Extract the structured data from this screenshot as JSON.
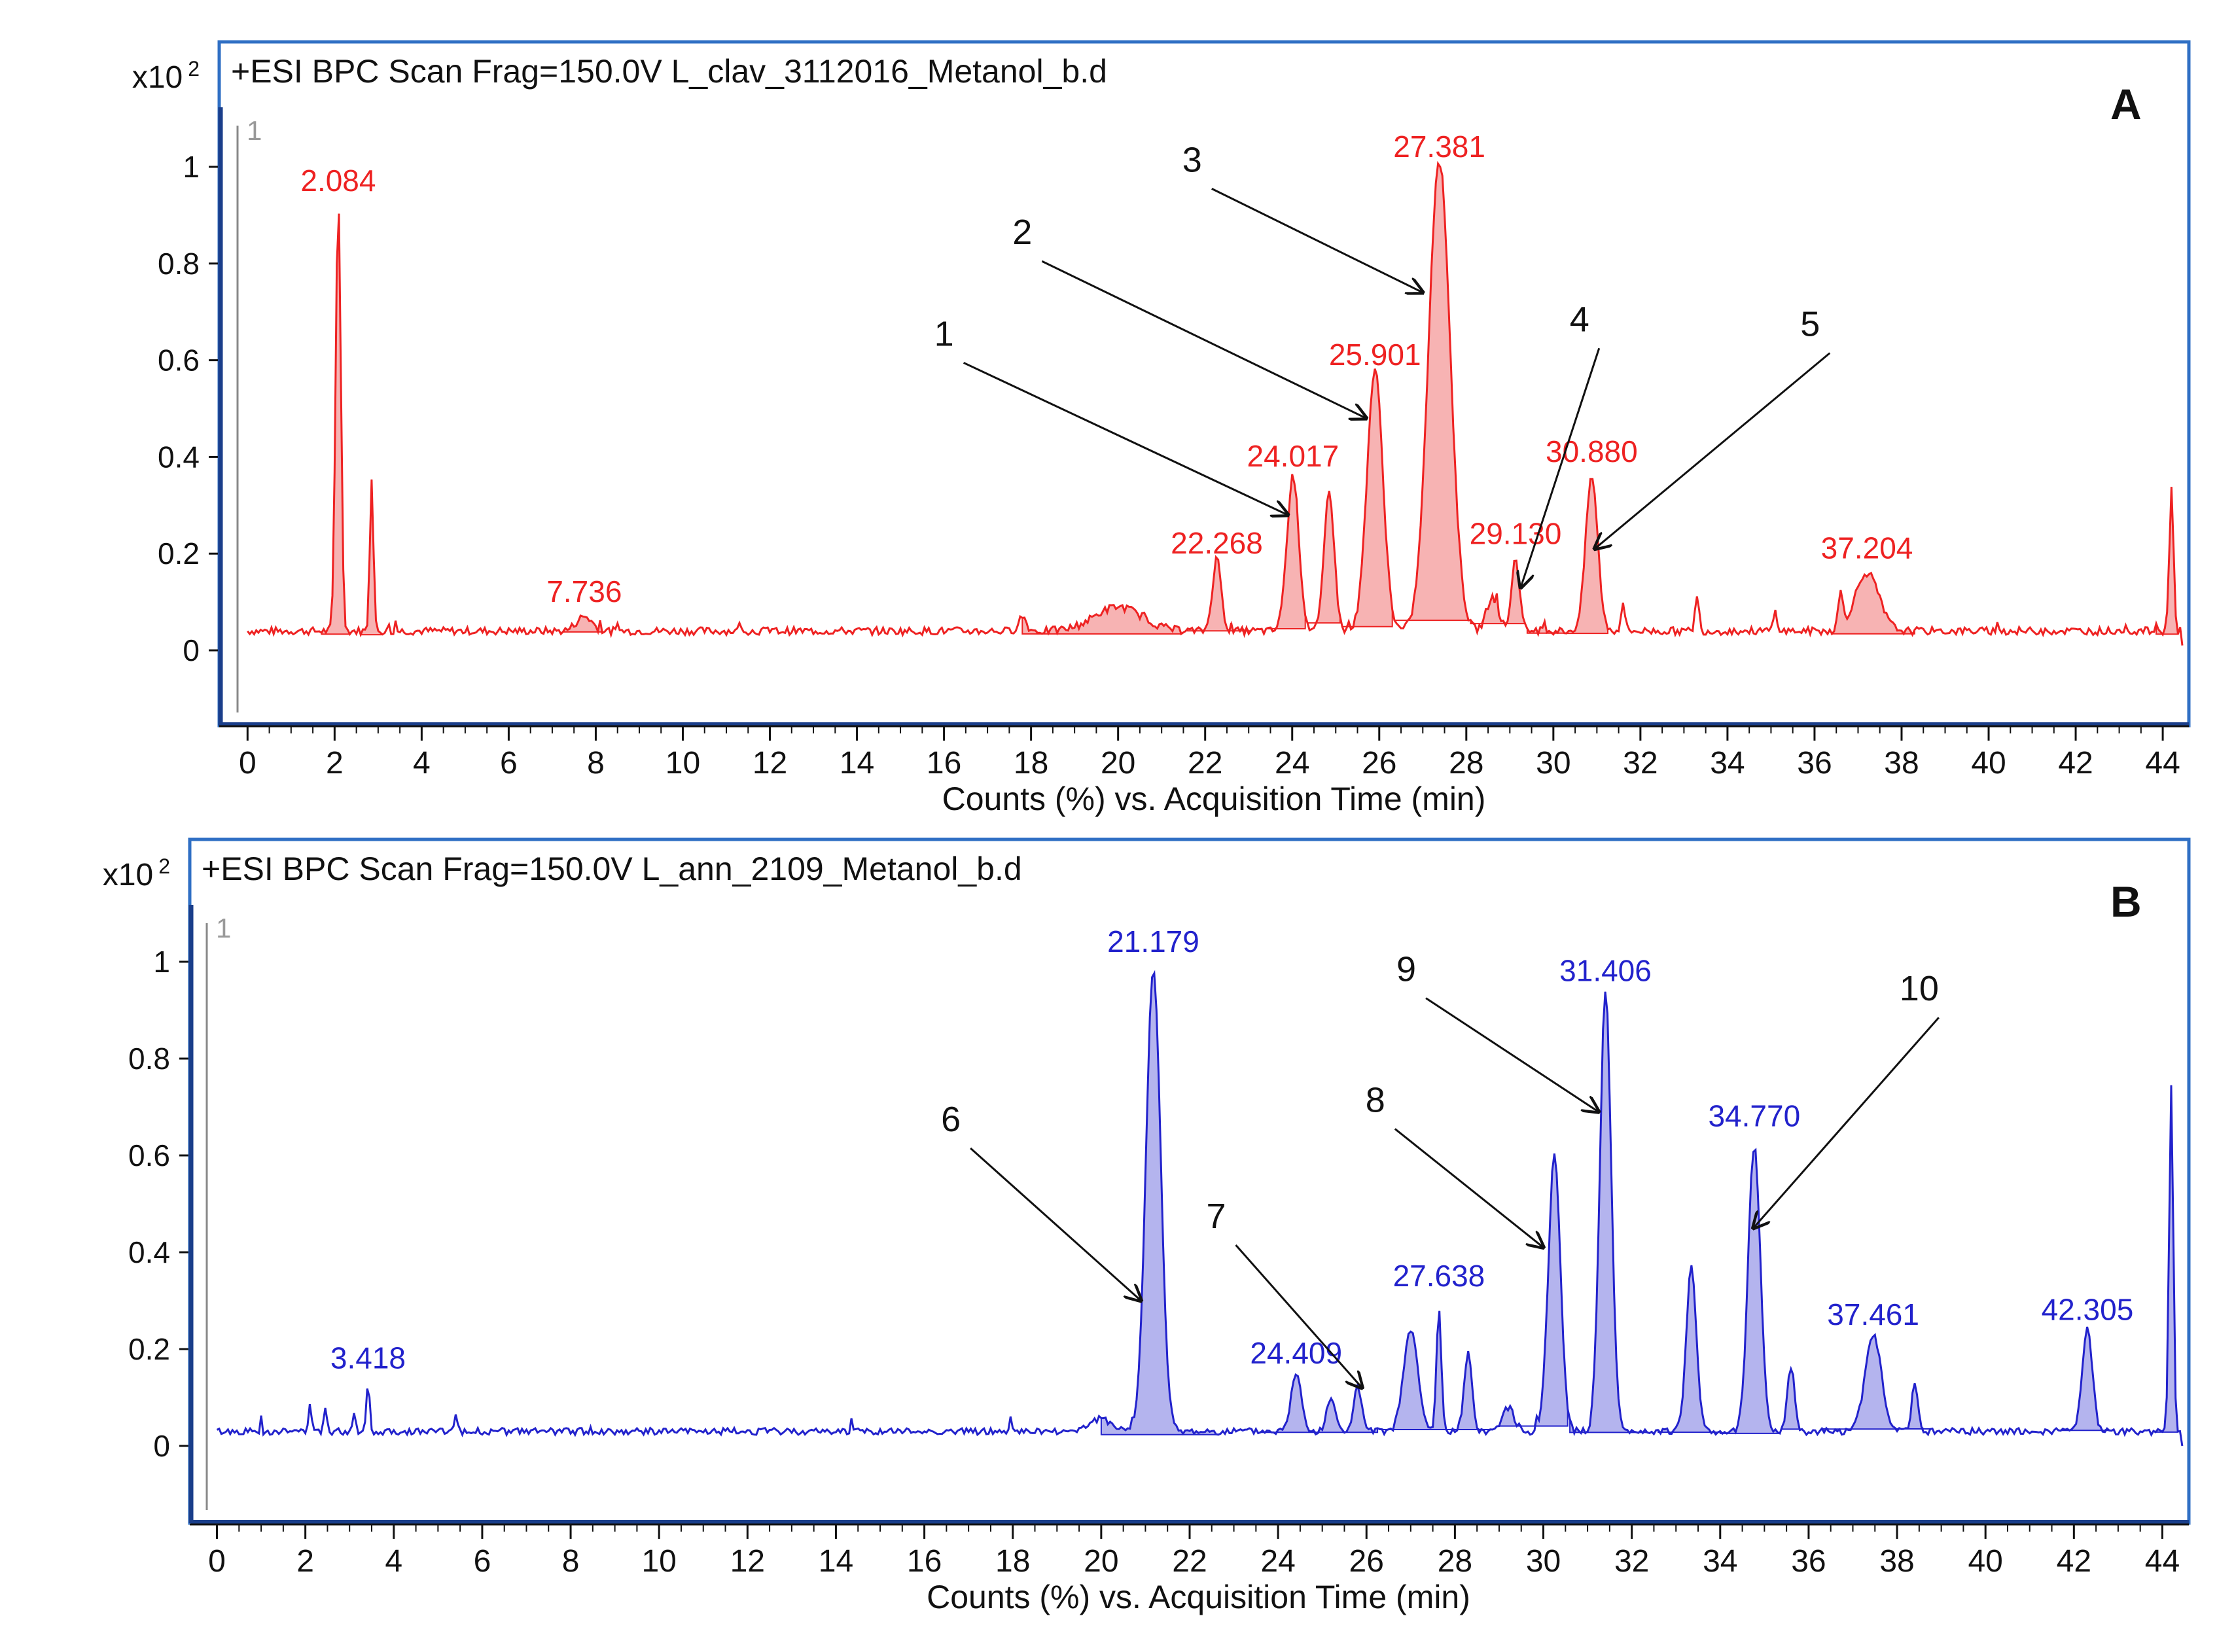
{
  "figure": {
    "description_free": true,
    "y_multiplier_label": "x10",
    "y_multiplier_exp": "2",
    "x_axis_label": "Counts (%) vs. Acquisition Time (min)"
  },
  "chart_data": [
    {
      "id": "A",
      "type": "line",
      "panel_label": "A",
      "title": "+ESI BPC Scan Frag=150.0V L_clav_3112016_Metanol_b.d",
      "xlabel": "Counts (%) vs. Acquisition Time (min)",
      "ylabel": "x10 2",
      "trace_index_label": "1",
      "xlim": [
        -0.2,
        44.6
      ],
      "ylim": [
        -0.13,
        1.1
      ],
      "x_ticks": [
        0,
        2,
        4,
        6,
        8,
        10,
        12,
        14,
        16,
        18,
        20,
        22,
        24,
        26,
        28,
        30,
        32,
        34,
        36,
        38,
        40,
        42,
        44
      ],
      "y_ticks": [
        0,
        0.2,
        0.4,
        0.6,
        0.8,
        1
      ],
      "color": "#ee2222",
      "fill": "#f7b3b3",
      "baseline": 0.04,
      "noise": 0.008,
      "peaks": [
        {
          "x": 2.084,
          "h": 0.9,
          "w": 0.13
        },
        {
          "x": 2.85,
          "h": 0.32,
          "w": 0.09
        },
        {
          "x": 7.736,
          "h": 0.03,
          "w": 0.4
        },
        {
          "x": 17.8,
          "h": 0.03,
          "w": 0.2
        },
        {
          "x": 20.0,
          "h": 0.05,
          "w": 1.2
        },
        {
          "x": 22.268,
          "h": 0.15,
          "w": 0.22
        },
        {
          "x": 24.017,
          "h": 0.32,
          "w": 0.3
        },
        {
          "x": 24.85,
          "h": 0.29,
          "w": 0.25
        },
        {
          "x": 25.901,
          "h": 0.54,
          "w": 0.4
        },
        {
          "x": 27.381,
          "h": 0.97,
          "w": 0.55
        },
        {
          "x": 28.6,
          "h": 0.07,
          "w": 0.3
        },
        {
          "x": 29.13,
          "h": 0.15,
          "w": 0.2
        },
        {
          "x": 30.88,
          "h": 0.32,
          "w": 0.3
        },
        {
          "x": 31.6,
          "h": 0.06,
          "w": 0.1
        },
        {
          "x": 33.3,
          "h": 0.07,
          "w": 0.1
        },
        {
          "x": 35.1,
          "h": 0.04,
          "w": 0.1
        },
        {
          "x": 36.6,
          "h": 0.07,
          "w": 0.12
        },
        {
          "x": 37.204,
          "h": 0.12,
          "w": 0.6
        },
        {
          "x": 44.2,
          "h": 0.3,
          "w": 0.1
        }
      ],
      "filled_regions": [
        [
          1.7,
          2.35
        ],
        [
          2.55,
          3.1
        ],
        [
          7.2,
          8.2
        ],
        [
          17.8,
          21.5
        ],
        [
          21.6,
          23.1
        ],
        [
          23.4,
          24.35
        ],
        [
          24.35,
          25.15
        ],
        [
          25.15,
          26.35
        ],
        [
          26.35,
          28.1
        ],
        [
          28.1,
          29.4
        ],
        [
          29.4,
          30.3
        ],
        [
          30.3,
          31.3
        ],
        [
          36.4,
          38.3
        ],
        [
          43.8,
          44.35
        ]
      ],
      "peak_labels": [
        {
          "text": "2.084",
          "x": 2.084,
          "y": 0.95
        },
        {
          "text": "7.736",
          "x": 7.736,
          "y": 0.1
        },
        {
          "text": "22.268",
          "x": 22.268,
          "y": 0.2
        },
        {
          "text": "24.017",
          "x": 24.017,
          "y": 0.38
        },
        {
          "text": "25.901",
          "x": 25.901,
          "y": 0.59
        },
        {
          "text": "27.381",
          "x": 27.381,
          "y": 1.02
        },
        {
          "text": "29.130",
          "x": 29.13,
          "y": 0.22
        },
        {
          "text": "30.880",
          "x": 30.88,
          "y": 0.39
        },
        {
          "text": "37.204",
          "x": 37.204,
          "y": 0.19
        }
      ],
      "annotations": [
        {
          "text": "1",
          "label_x": 16.0,
          "label_y": 0.63,
          "tip_x": 23.9,
          "tip_y": 0.28
        },
        {
          "text": "2",
          "label_x": 17.8,
          "label_y": 0.84,
          "tip_x": 25.7,
          "tip_y": 0.48
        },
        {
          "text": "3",
          "label_x": 21.7,
          "label_y": 0.99,
          "tip_x": 27.0,
          "tip_y": 0.74
        },
        {
          "text": "4",
          "label_x": 30.6,
          "label_y": 0.66,
          "tip_x": 29.25,
          "tip_y": 0.13
        },
        {
          "text": "5",
          "label_x": 35.9,
          "label_y": 0.65,
          "tip_x": 30.95,
          "tip_y": 0.21
        }
      ]
    },
    {
      "id": "B",
      "type": "line",
      "panel_label": "B",
      "title": "+ESI BPC Scan Frag=150.0V L_ann_2109_Metanol_b.d",
      "xlabel": "Counts (%) vs. Acquisition Time (min)",
      "ylabel": "x10 2",
      "trace_index_label": "1",
      "xlim": [
        -0.2,
        44.6
      ],
      "ylim": [
        -0.13,
        1.1
      ],
      "x_ticks": [
        0,
        2,
        4,
        6,
        8,
        10,
        12,
        14,
        16,
        18,
        20,
        22,
        24,
        26,
        28,
        30,
        32,
        34,
        36,
        38,
        40,
        42,
        44
      ],
      "y_ticks": [
        0,
        0.2,
        0.4,
        0.6,
        0.8,
        1
      ],
      "color": "#2222cc",
      "fill": "#b4b4ee",
      "baseline": 0.03,
      "noise": 0.007,
      "peaks": [
        {
          "x": 2.1,
          "h": 0.05,
          "w": 0.08
        },
        {
          "x": 2.45,
          "h": 0.05,
          "w": 0.08
        },
        {
          "x": 3.1,
          "h": 0.04,
          "w": 0.08
        },
        {
          "x": 3.418,
          "h": 0.1,
          "w": 0.08
        },
        {
          "x": 5.4,
          "h": 0.03,
          "w": 0.1
        },
        {
          "x": 20.0,
          "h": 0.025,
          "w": 0.6
        },
        {
          "x": 21.179,
          "h": 0.96,
          "w": 0.36
        },
        {
          "x": 24.409,
          "h": 0.12,
          "w": 0.25
        },
        {
          "x": 25.2,
          "h": 0.07,
          "w": 0.2
        },
        {
          "x": 25.8,
          "h": 0.09,
          "w": 0.2
        },
        {
          "x": 27.0,
          "h": 0.21,
          "w": 0.35
        },
        {
          "x": 27.638,
          "h": 0.25,
          "w": 0.12
        },
        {
          "x": 28.3,
          "h": 0.16,
          "w": 0.2
        },
        {
          "x": 29.2,
          "h": 0.05,
          "w": 0.3
        },
        {
          "x": 30.25,
          "h": 0.57,
          "w": 0.3
        },
        {
          "x": 31.406,
          "h": 0.91,
          "w": 0.28
        },
        {
          "x": 33.35,
          "h": 0.34,
          "w": 0.25
        },
        {
          "x": 34.77,
          "h": 0.59,
          "w": 0.3
        },
        {
          "x": 35.6,
          "h": 0.13,
          "w": 0.18
        },
        {
          "x": 37.461,
          "h": 0.2,
          "w": 0.4
        },
        {
          "x": 38.4,
          "h": 0.1,
          "w": 0.15
        },
        {
          "x": 42.305,
          "h": 0.21,
          "w": 0.25
        },
        {
          "x": 44.2,
          "h": 0.72,
          "w": 0.1
        }
      ],
      "filled_regions": [
        [
          20.0,
          22.7
        ],
        [
          23.6,
          26.3
        ],
        [
          26.3,
          28.9
        ],
        [
          29.0,
          30.6
        ],
        [
          30.6,
          32.4
        ],
        [
          32.6,
          34.0
        ],
        [
          34.0,
          35.4
        ],
        [
          35.4,
          35.9
        ],
        [
          36.3,
          38.1
        ],
        [
          38.1,
          38.8
        ],
        [
          41.6,
          42.9
        ],
        [
          43.8,
          44.35
        ]
      ],
      "peak_labels": [
        {
          "text": "3.418",
          "x": 3.418,
          "y": 0.16
        },
        {
          "text": "21.179",
          "x": 21.179,
          "y": 1.02
        },
        {
          "text": "24.409",
          "x": 24.409,
          "y": 0.17
        },
        {
          "text": "27.638",
          "x": 27.638,
          "y": 0.33
        },
        {
          "text": "31.406",
          "x": 31.406,
          "y": 0.96
        },
        {
          "text": "34.770",
          "x": 34.77,
          "y": 0.66
        },
        {
          "text": "37.461",
          "x": 37.461,
          "y": 0.25
        },
        {
          "text": "42.305",
          "x": 42.305,
          "y": 0.26
        }
      ],
      "annotations": [
        {
          "text": "6",
          "label_x": 16.6,
          "label_y": 0.65,
          "tip_x": 20.9,
          "tip_y": 0.3
        },
        {
          "text": "7",
          "label_x": 22.6,
          "label_y": 0.45,
          "tip_x": 25.9,
          "tip_y": 0.12
        },
        {
          "text": "8",
          "label_x": 26.2,
          "label_y": 0.69,
          "tip_x": 30.0,
          "tip_y": 0.41
        },
        {
          "text": "9",
          "label_x": 26.9,
          "label_y": 0.96,
          "tip_x": 31.25,
          "tip_y": 0.69
        },
        {
          "text": "10",
          "label_x": 38.5,
          "label_y": 0.92,
          "tip_x": 34.75,
          "tip_y": 0.45
        }
      ]
    }
  ]
}
